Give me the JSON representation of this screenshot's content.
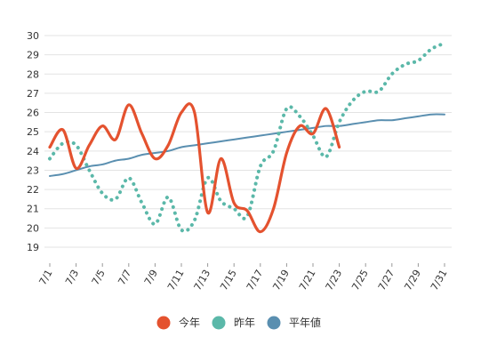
{
  "chart_data": {
    "type": "line",
    "title": "",
    "xlabel": "",
    "ylabel": "",
    "ylim": [
      19,
      30
    ],
    "y_ticks": [
      19,
      20,
      21,
      22,
      23,
      24,
      25,
      26,
      27,
      28,
      29,
      30
    ],
    "x_ticks": [
      "7/1",
      "7/3",
      "7/5",
      "7/7",
      "7/9",
      "7/11",
      "7/13",
      "7/15",
      "7/17",
      "7/19",
      "7/21",
      "7/23",
      "7/25",
      "7/27",
      "7/29",
      "7/31"
    ],
    "grid": "horizontal",
    "legend_position": "bottom-center",
    "series": [
      {
        "name": "今年",
        "color": "#e4522f",
        "style": "solid",
        "x": [
          "7/1",
          "7/2",
          "7/3",
          "7/4",
          "7/5",
          "7/6",
          "7/7",
          "7/8",
          "7/9",
          "7/10",
          "7/11",
          "7/12",
          "7/13",
          "7/14",
          "7/15",
          "7/16",
          "7/17",
          "7/18",
          "7/19",
          "7/20",
          "7/21",
          "7/22",
          "7/23"
        ],
        "values": [
          24.2,
          25.1,
          23.1,
          24.3,
          25.3,
          24.6,
          26.4,
          24.9,
          23.6,
          24.3,
          26.0,
          26.0,
          20.8,
          23.6,
          21.3,
          20.9,
          19.8,
          21.0,
          23.9,
          25.3,
          24.9,
          26.2,
          24.2
        ]
      },
      {
        "name": "昨年",
        "color": "#5bb8a9",
        "style": "dotted",
        "x": [
          "7/1",
          "7/2",
          "7/3",
          "7/4",
          "7/5",
          "7/6",
          "7/7",
          "7/8",
          "7/9",
          "7/10",
          "7/11",
          "7/12",
          "7/13",
          "7/14",
          "7/15",
          "7/16",
          "7/17",
          "7/18",
          "7/19",
          "7/20",
          "7/21",
          "7/22",
          "7/23",
          "7/24",
          "7/25",
          "7/26",
          "7/27",
          "7/28",
          "7/29",
          "7/30",
          "7/31"
        ],
        "values": [
          23.6,
          24.4,
          24.3,
          23.0,
          21.8,
          21.5,
          22.6,
          21.3,
          20.2,
          21.6,
          19.9,
          20.4,
          22.6,
          21.4,
          21.0,
          20.6,
          23.2,
          24.0,
          26.2,
          25.8,
          24.8,
          23.7,
          25.5,
          26.6,
          27.1,
          27.1,
          28.0,
          28.5,
          28.7,
          29.3,
          29.6
        ]
      },
      {
        "name": "平年値",
        "color": "#5a8fb0",
        "style": "solid",
        "x": [
          "7/1",
          "7/2",
          "7/3",
          "7/4",
          "7/5",
          "7/6",
          "7/7",
          "7/8",
          "7/9",
          "7/10",
          "7/11",
          "7/12",
          "7/13",
          "7/14",
          "7/15",
          "7/16",
          "7/17",
          "7/18",
          "7/19",
          "7/20",
          "7/21",
          "7/22",
          "7/23",
          "7/24",
          "7/25",
          "7/26",
          "7/27",
          "7/28",
          "7/29",
          "7/30",
          "7/31"
        ],
        "values": [
          22.7,
          22.8,
          23.0,
          23.2,
          23.3,
          23.5,
          23.6,
          23.8,
          23.9,
          24.0,
          24.2,
          24.3,
          24.4,
          24.5,
          24.6,
          24.7,
          24.8,
          24.9,
          25.0,
          25.1,
          25.2,
          25.3,
          25.3,
          25.4,
          25.5,
          25.6,
          25.6,
          25.7,
          25.8,
          25.9,
          25.9
        ]
      }
    ]
  }
}
